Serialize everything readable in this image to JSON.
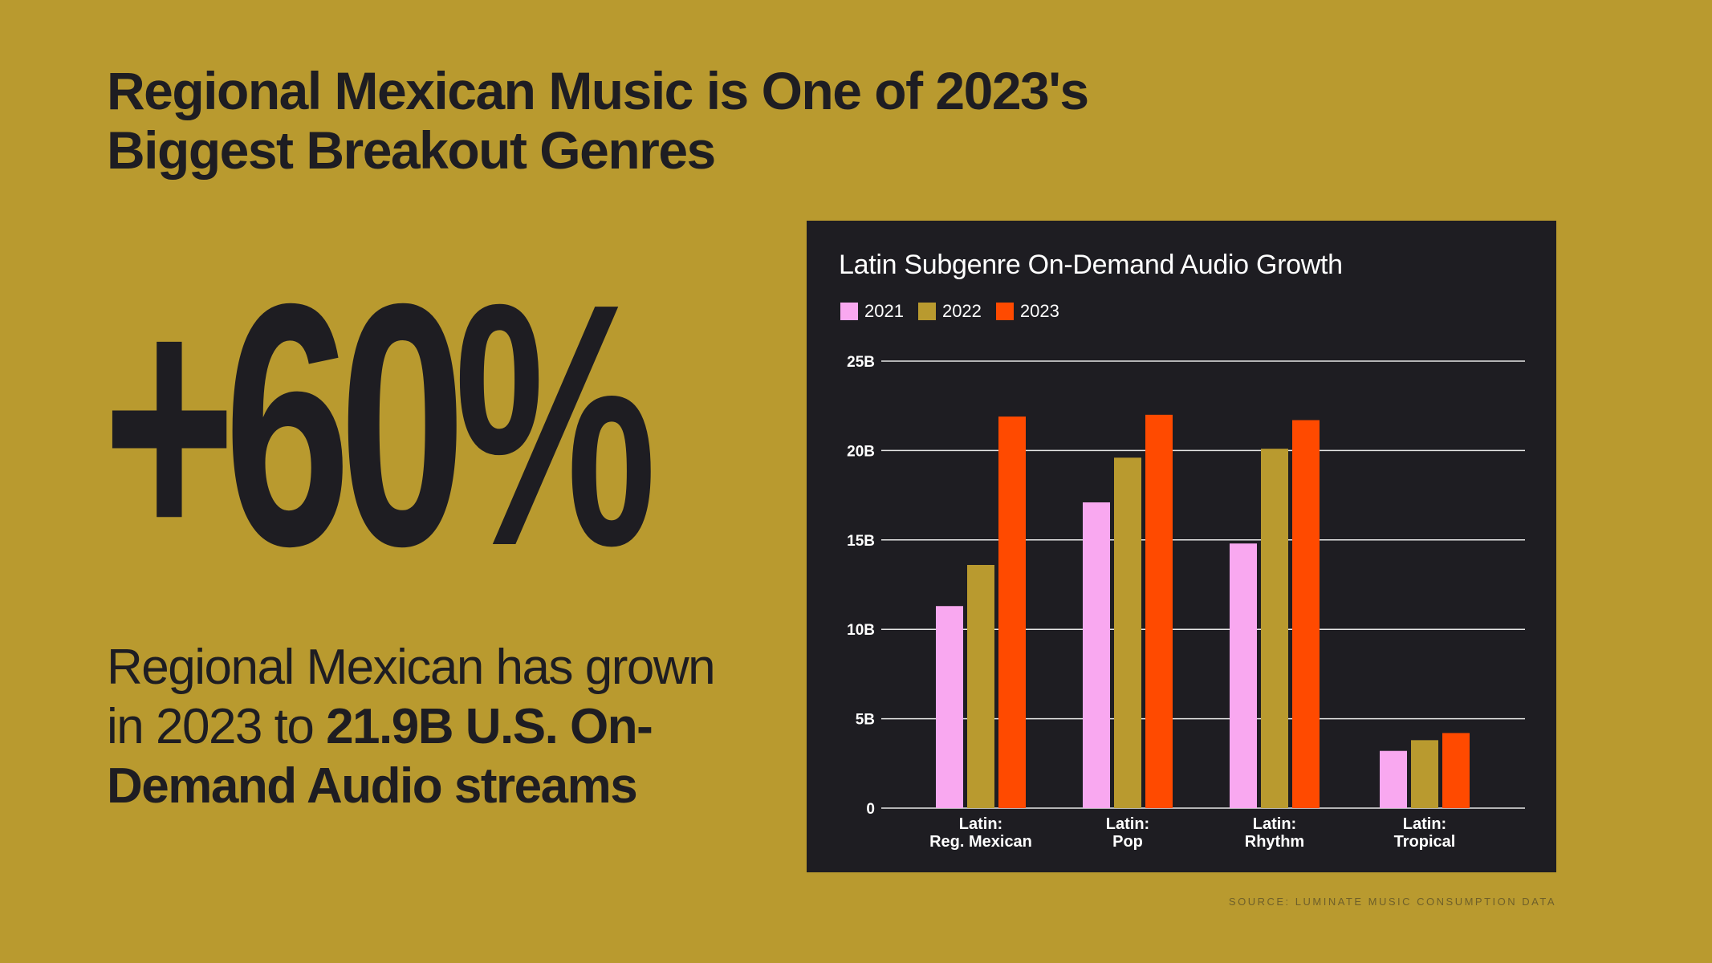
{
  "headline": {
    "line1": "Regional Mexican Music is One of 2023's",
    "line2": "Biggest Breakout Genres"
  },
  "stat": {
    "value": "+60%"
  },
  "description": {
    "normal": "Regional Mexican has grown in 2023 to ",
    "bold": "21.9B U.S. On-Demand Audio streams"
  },
  "source": "SOURCE: LUMINATE MUSIC CONSUMPTION DATA",
  "colors": {
    "background": "#b99a2f",
    "panel": "#1e1d22",
    "series_2021": "#f9a8f0",
    "series_2022": "#b99a2f",
    "series_2023": "#ff4a00",
    "gridline": "#e6e6e6"
  },
  "chart_data": {
    "type": "bar",
    "title": "Latin Subgenre On-Demand Audio Growth",
    "categories": [
      [
        "Latin:",
        "Reg. Mexican"
      ],
      [
        "Latin:",
        "Pop"
      ],
      [
        "Latin:",
        "Rhythm"
      ],
      [
        "Latin:",
        "Tropical"
      ]
    ],
    "series": [
      {
        "name": "2021",
        "values": [
          11.3,
          17.1,
          14.8,
          3.2
        ]
      },
      {
        "name": "2022",
        "values": [
          13.6,
          19.6,
          20.1,
          3.8
        ]
      },
      {
        "name": "2023",
        "values": [
          21.9,
          22.0,
          21.7,
          4.2
        ]
      }
    ],
    "ylim": [
      0,
      25
    ],
    "yticks": [
      0,
      5,
      10,
      15,
      20,
      25
    ],
    "ytick_labels": [
      "0",
      "5B",
      "10B",
      "15B",
      "20B",
      "25B"
    ],
    "xlabel": "",
    "ylabel": "",
    "grid": true,
    "legend_position": "top-left"
  }
}
